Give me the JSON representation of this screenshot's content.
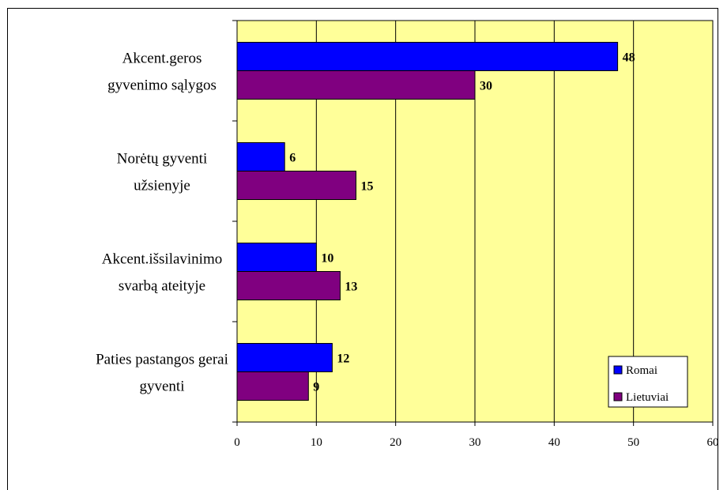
{
  "chart_data": {
    "type": "bar",
    "orientation": "horizontal",
    "categories": [
      "Akcent.geros gyvenimo sąlygos",
      "Norėtų gyventi užsienyje",
      "Akcent.išsilavinimo svarbą ateityje",
      "Paties pastangos gerai gyventi"
    ],
    "category_lines": [
      [
        "Akcent.geros",
        "gyvenimo sąlygos"
      ],
      [
        "Norėtų gyventi",
        "užsienyje"
      ],
      [
        "Akcent.išsilavinimo",
        "svarbą ateityje"
      ],
      [
        "Paties pastangos gerai",
        "gyventi"
      ]
    ],
    "series": [
      {
        "name": "Romai",
        "color": "#0000ff",
        "values": [
          48,
          6,
          10,
          12
        ]
      },
      {
        "name": "Lietuviai",
        "color": "#800080",
        "values": [
          30,
          15,
          13,
          9
        ]
      }
    ],
    "xlim": [
      0,
      60
    ],
    "xticks": [
      0,
      10,
      20,
      30,
      40,
      50,
      60
    ],
    "xlabel": "",
    "ylabel": "",
    "title": "",
    "grid": "vertical",
    "plot_background": "#ffff99",
    "legend_position": "bottom-right"
  }
}
